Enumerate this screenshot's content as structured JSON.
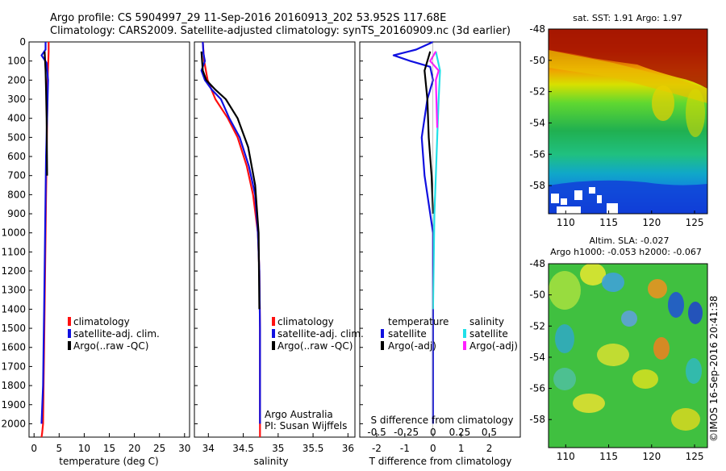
{
  "header": {
    "line1": "Argo profile: CS 5904997_29 11-Sep-2016 20160913_202 53.952S 117.68E",
    "line2": "Climatology: CARS2009. Satellite-adjusted climatology: synTS_20160909.nc (3d earlier)"
  },
  "colors": {
    "clim": "#ff1010",
    "sat": "#1010e0",
    "argo": "#000000",
    "sal_sat": "#20e0e8",
    "sal_argo": "#ff20ff"
  },
  "chart_data": [
    {
      "type": "line",
      "name": "temperature-profile",
      "xlabel": "temperature (deg C)",
      "xlim": [
        -1,
        31
      ],
      "ylim": [
        2070,
        0
      ],
      "xticks": [
        0,
        5,
        10,
        15,
        20,
        25,
        30
      ],
      "yticks": [
        0,
        100,
        200,
        300,
        400,
        500,
        600,
        700,
        800,
        900,
        1000,
        1100,
        1200,
        1300,
        1400,
        1500,
        1600,
        1700,
        1800,
        1900,
        2000
      ],
      "legend": [
        "climatology",
        "satellite-adj. clim.",
        "Argo(..raw -QC)"
      ],
      "series": [
        {
          "name": "climatology",
          "color": "#ff1010",
          "x": [
            2.9,
            2.9,
            2.85,
            2.7,
            2.6,
            2.5,
            2.4,
            2.3,
            2.2,
            2.1,
            2.0,
            1.9,
            1.8,
            1.6,
            1.5
          ],
          "y": [
            0,
            50,
            100,
            200,
            400,
            600,
            800,
            1000,
            1200,
            1400,
            1600,
            1800,
            2000,
            2050,
            2070
          ]
        },
        {
          "name": "satellite-adj. clim.",
          "color": "#1010e0",
          "x": [
            2.3,
            2.3,
            1.5,
            2.5,
            2.8,
            2.6,
            2.4,
            2.3,
            2.2,
            2.1,
            2.0,
            1.9,
            1.8,
            1.5
          ],
          "y": [
            0,
            40,
            70,
            110,
            200,
            400,
            600,
            800,
            1000,
            1200,
            1400,
            1600,
            1800,
            2000
          ]
        },
        {
          "name": "Argo(..raw -QC)",
          "color": "#000000",
          "x": [
            2.1,
            2.3,
            2.4,
            2.5,
            2.6
          ],
          "y": [
            50,
            150,
            250,
            400,
            700
          ]
        }
      ]
    },
    {
      "type": "line",
      "name": "salinity-profile",
      "xlabel": "salinity",
      "xlim": [
        33.8,
        36.1
      ],
      "ylim": [
        2070,
        0
      ],
      "xticks": [
        34,
        34.5,
        35,
        35.5,
        36
      ],
      "legend": [
        "climatology",
        "satellite-adj. clim.",
        "Argo(..raw -QC)"
      ],
      "annotations": [
        "Argo Australia",
        "PI: Susan Wijffels"
      ],
      "series": [
        {
          "name": "climatology",
          "color": "#ff1010",
          "x": [
            33.92,
            33.94,
            33.99,
            34.1,
            34.28,
            34.42,
            34.55,
            34.64,
            34.71,
            34.73,
            34.74,
            34.74
          ],
          "y": [
            0,
            100,
            200,
            300,
            400,
            500,
            650,
            800,
            1000,
            1200,
            1500,
            2070
          ]
        },
        {
          "name": "satellite-adj. clim.",
          "color": "#1010e0",
          "x": [
            33.92,
            33.93,
            33.95,
            33.9,
            33.95,
            34.05,
            34.18,
            34.3,
            34.45,
            34.58,
            34.67,
            34.71,
            34.73,
            34.74,
            34.74
          ],
          "y": [
            0,
            60,
            100,
            150,
            200,
            250,
            300,
            400,
            500,
            650,
            800,
            1000,
            1200,
            1500,
            2000
          ]
        },
        {
          "name": "Argo(..raw -QC)",
          "color": "#000000",
          "x": [
            33.9,
            33.92,
            33.97,
            34.1,
            34.25,
            34.42,
            34.57,
            34.67,
            34.72,
            34.73
          ],
          "y": [
            50,
            150,
            200,
            250,
            300,
            400,
            550,
            750,
            1000,
            1400
          ]
        }
      ]
    },
    {
      "type": "line",
      "name": "difference-profile",
      "xlabel": "T difference from climatology",
      "xlabel_top": "S difference from climatology",
      "xlim": [
        -2.6,
        3.1
      ],
      "ylim": [
        2070,
        0
      ],
      "xticks": [
        -2,
        -1,
        0,
        1,
        2
      ],
      "xticks_top": [
        "-0.5",
        "-0.25",
        "0",
        "0.25",
        "0.5"
      ],
      "legend_titles": [
        "temperature",
        "salinity"
      ],
      "legend": [
        "satellite",
        "Argo(-adj)",
        "satellite",
        "Argo(-adj)"
      ],
      "series": [
        {
          "name": "temperature satellite",
          "color": "#1010e0",
          "x": [
            0,
            -0.6,
            -1.4,
            -0.8,
            -0.1,
            0,
            -0.2,
            -0.4,
            -0.3,
            -0.1,
            0,
            0,
            0
          ],
          "y": [
            0,
            40,
            70,
            100,
            130,
            200,
            300,
            500,
            700,
            900,
            1000,
            1500,
            2000
          ]
        },
        {
          "name": "temperature Argo(-adj)",
          "color": "#000000",
          "x": [
            -0.1,
            -0.3,
            -0.2,
            -0.15,
            -0.05,
            0
          ],
          "y": [
            50,
            150,
            300,
            500,
            700,
            900
          ]
        },
        {
          "name": "salinity satellite",
          "color": "#20e0e8",
          "x": [
            0.1,
            0.25,
            0.2,
            0.15,
            0.1,
            0.05,
            0
          ],
          "y": [
            50,
            150,
            300,
            500,
            700,
            900,
            1400
          ]
        },
        {
          "name": "salinity Argo(-adj)",
          "color": "#ff20ff",
          "x": [
            0.1,
            -0.1,
            0.2,
            0.1,
            0.15
          ],
          "y": [
            50,
            100,
            150,
            200,
            450
          ]
        }
      ]
    },
    {
      "type": "heatmap",
      "name": "sst-map",
      "title": "sat. SST: 1.91 Argo: 1.97",
      "xlim": [
        108,
        126.5
      ],
      "ylim": [
        -59.8,
        -48
      ],
      "xticks": [
        110,
        115,
        120,
        125
      ],
      "yticks": [
        -48,
        -50,
        -52,
        -54,
        -56,
        -58
      ]
    },
    {
      "type": "heatmap",
      "name": "sla-map",
      "title": "Altim. SLA: -0.027",
      "subtitle": "Argo h1000: -0.053 h2000: -0.067",
      "side_label": "©IMOS 16-Sep-2016 20:41:38",
      "xlim": [
        108,
        126.5
      ],
      "ylim": [
        -59.8,
        -48
      ],
      "xticks": [
        110,
        115,
        120,
        125
      ],
      "yticks": [
        -48,
        -50,
        -52,
        -54,
        -56,
        -58
      ]
    }
  ]
}
